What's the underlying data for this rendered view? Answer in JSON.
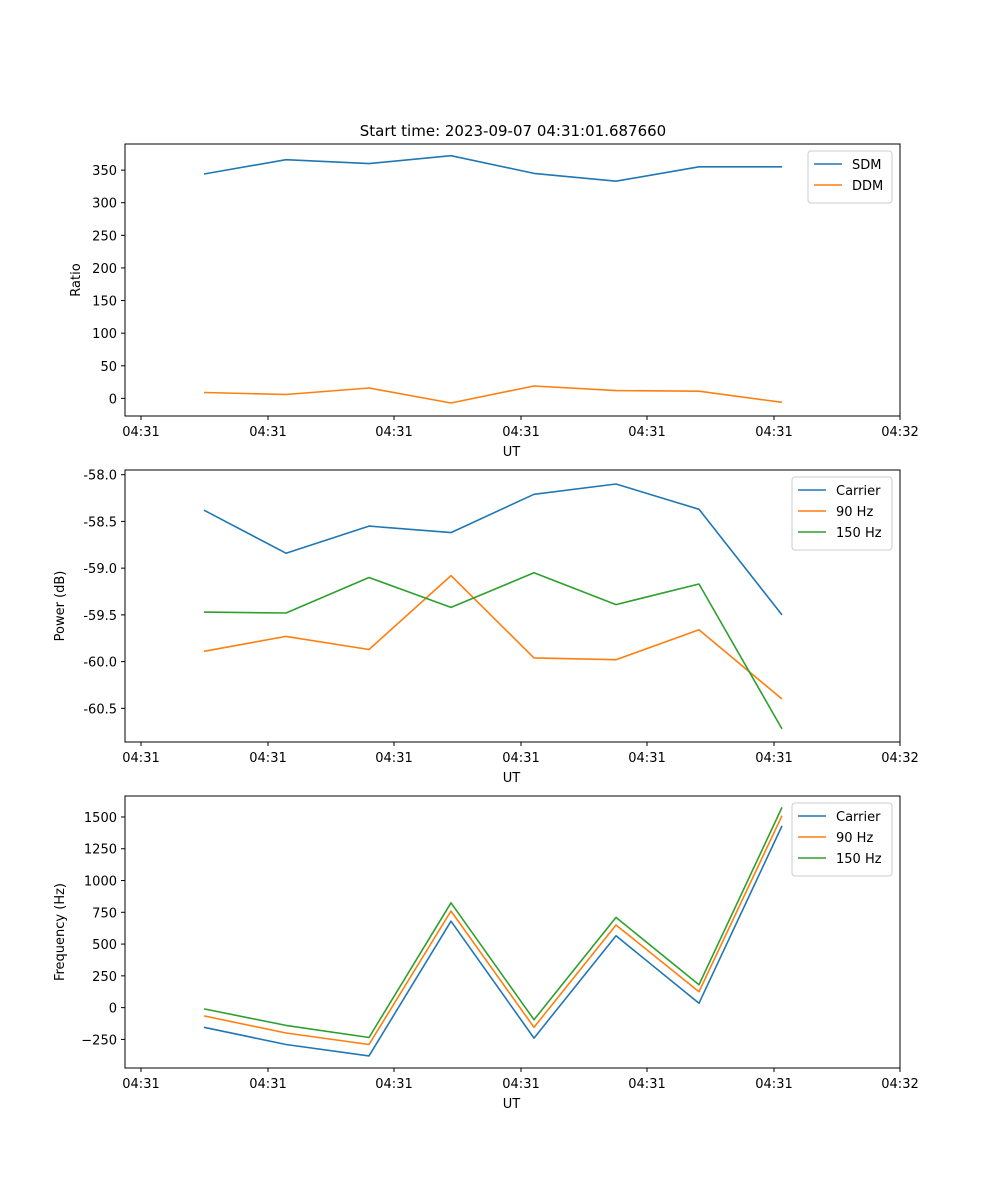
{
  "suptitle": "Start time: 2023-09-07 04:31:01.687660",
  "chart_data": [
    {
      "type": "line",
      "xlabel": "UT",
      "ylabel": "Ratio",
      "x_ticks": [
        "04:31",
        "04:31",
        "04:31",
        "04:31",
        "04:31",
        "04:31",
        "04:31"
      ],
      "y_ticks": [
        0,
        50,
        100,
        150,
        200,
        250,
        300,
        350
      ],
      "ylim": [
        -27,
        390
      ],
      "legend_position": "top-right",
      "series": [
        {
          "name": "SDM",
          "color": "#1f77b4",
          "values": [
            344,
            366,
            360,
            372,
            345,
            333,
            355,
            355
          ]
        },
        {
          "name": "DDM",
          "color": "#ff7f0e",
          "values": [
            9,
            6,
            16,
            -7,
            19,
            12,
            11,
            -6
          ]
        }
      ]
    },
    {
      "type": "line",
      "xlabel": "UT",
      "ylabel": "Power (dB)",
      "x_ticks": [
        "04:31",
        "04:31",
        "04:31",
        "04:31",
        "04:31",
        "04:31",
        "04:31"
      ],
      "y_ticks": [
        "-58.0",
        "-58.5",
        "-59.0",
        "-59.5",
        "-60.0",
        "-60.5"
      ],
      "y_tick_values": [
        -58.0,
        -58.5,
        -59.0,
        -59.5,
        -60.0,
        -60.5
      ],
      "ylim": [
        -60.86,
        -57.95
      ],
      "legend_position": "top-right",
      "series": [
        {
          "name": "Carrier",
          "color": "#1f77b4",
          "values": [
            -58.38,
            -58.84,
            -58.55,
            -58.62,
            -58.21,
            -58.1,
            -58.37,
            -59.5
          ]
        },
        {
          "name": "90 Hz",
          "color": "#ff7f0e",
          "values": [
            -59.89,
            -59.73,
            -59.87,
            -59.08,
            -59.96,
            -59.98,
            -59.66,
            -60.4
          ]
        },
        {
          "name": "150 Hz",
          "color": "#2ca02c",
          "values": [
            -59.47,
            -59.48,
            -59.1,
            -59.42,
            -59.05,
            -59.39,
            -59.17,
            -60.72
          ]
        }
      ]
    },
    {
      "type": "line",
      "xlabel": "UT",
      "ylabel": "Frequency (Hz)",
      "x_ticks": [
        "04:31",
        "04:31",
        "04:31",
        "04:31",
        "04:31",
        "04:31",
        "04:31"
      ],
      "y_ticks": [
        "−250",
        "0",
        "250",
        "500",
        "750",
        "1000",
        "1250",
        "1500"
      ],
      "y_tick_values": [
        -250,
        0,
        250,
        500,
        750,
        1000,
        1250,
        1500
      ],
      "ylim": [
        -475,
        1665
      ],
      "legend_position": "top-right",
      "series": [
        {
          "name": "Carrier",
          "color": "#1f77b4",
          "values": [
            -155,
            -290,
            -380,
            680,
            -240,
            565,
            35,
            1430
          ]
        },
        {
          "name": "90 Hz",
          "color": "#ff7f0e",
          "values": [
            -65,
            -200,
            -290,
            760,
            -155,
            650,
            125,
            1510
          ]
        },
        {
          "name": "150 Hz",
          "color": "#2ca02c",
          "values": [
            -10,
            -140,
            -235,
            825,
            -95,
            710,
            180,
            1575
          ]
        }
      ]
    }
  ]
}
